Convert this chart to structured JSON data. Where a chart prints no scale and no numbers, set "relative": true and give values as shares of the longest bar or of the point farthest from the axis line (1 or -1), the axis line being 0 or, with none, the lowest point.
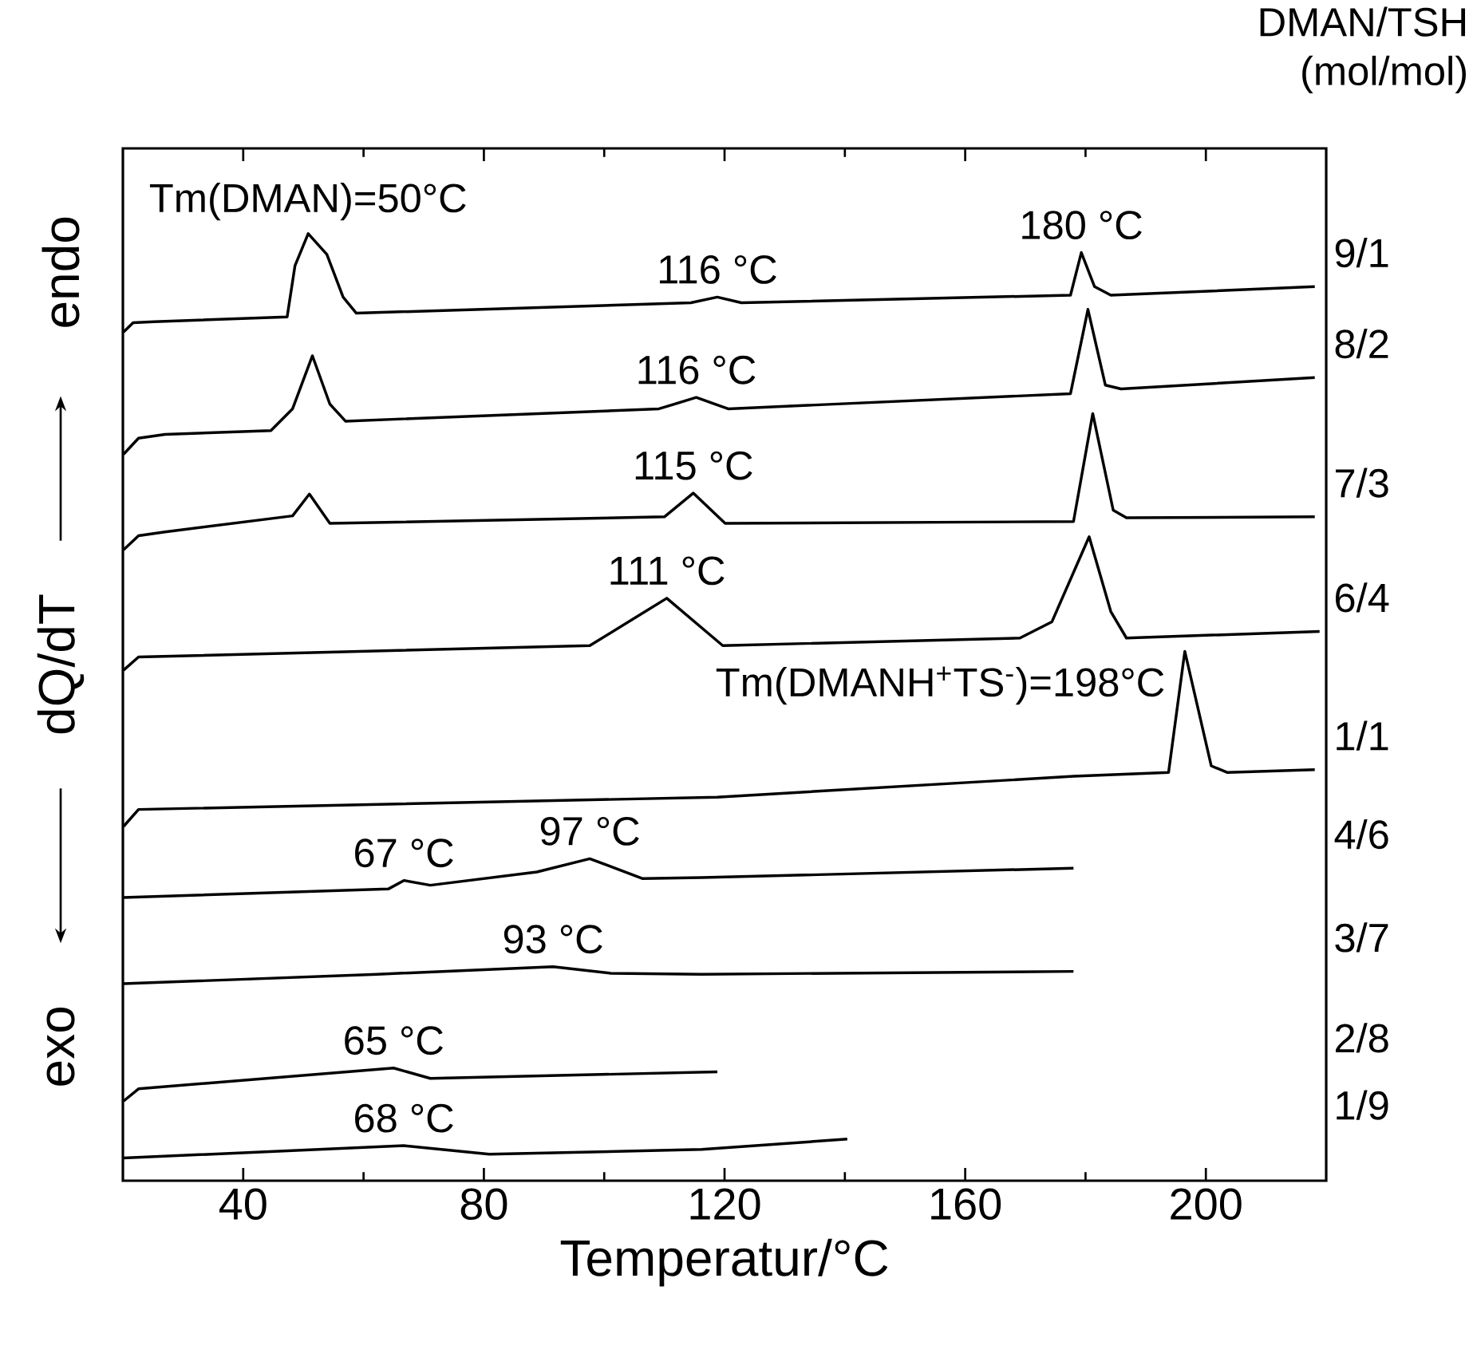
{
  "chart_data": {
    "type": "line",
    "relative": true,
    "xlabel": "Temperatur/°C",
    "ylabel": "dQ/dT",
    "legend_title": "DMAN/TSH (mol/mol)",
    "xlim": [
      20,
      220
    ],
    "xticks": [
      40,
      80,
      120,
      160,
      200
    ],
    "legend": false,
    "marker": "none",
    "line_style": "solid",
    "grid": false,
    "series": [
      {
        "name": "9/1",
        "color": "#000000",
        "x": [
          20.1,
          21.7,
          25.2,
          47.3,
          48.6,
          50.8,
          53.9,
          56.6,
          58.8,
          114.4,
          118.8,
          122.8,
          177.5,
          179.3,
          181.5,
          184.2,
          218.1
        ],
        "values": [
          0.896,
          0.906,
          0.907,
          0.912,
          0.966,
          1.0,
          0.978,
          0.933,
          0.916,
          0.927,
          0.933,
          0.927,
          0.935,
          0.98,
          0.944,
          0.935,
          0.944
        ]
      },
      {
        "name": "8/2",
        "color": "#000000",
        "x": [
          20.1,
          22.6,
          27.0,
          44.6,
          48.2,
          51.5,
          54.4,
          57.0,
          109.1,
          115.3,
          120.6,
          177.5,
          180.4,
          183.3,
          185.9,
          218.1
        ],
        "values": [
          0.767,
          0.784,
          0.788,
          0.792,
          0.815,
          0.871,
          0.82,
          0.802,
          0.815,
          0.827,
          0.815,
          0.831,
          0.92,
          0.84,
          0.836,
          0.848
        ]
      },
      {
        "name": "7/3",
        "color": "#000000",
        "x": [
          20.1,
          22.6,
          27.0,
          48.2,
          51.0,
          54.4,
          110.0,
          114.8,
          120.1,
          178.0,
          181.2,
          184.6,
          186.8,
          218.1
        ],
        "values": [
          0.666,
          0.681,
          0.685,
          0.702,
          0.725,
          0.694,
          0.701,
          0.726,
          0.694,
          0.696,
          0.81,
          0.708,
          0.7,
          0.701
        ]
      },
      {
        "name": "6/4",
        "color": "#000000",
        "x": [
          20.1,
          22.6,
          97.6,
          110.4,
          119.7,
          169.1,
          174.4,
          180.6,
          184.2,
          186.8,
          218.9
        ],
        "values": [
          0.539,
          0.553,
          0.565,
          0.615,
          0.565,
          0.573,
          0.59,
          0.68,
          0.601,
          0.573,
          0.58
        ]
      },
      {
        "name": "1/1",
        "color": "#000000",
        "x": [
          20.1,
          22.6,
          118.8,
          178.0,
          193.8,
          196.5,
          200.9,
          203.6,
          218.1
        ],
        "values": [
          0.374,
          0.392,
          0.405,
          0.427,
          0.431,
          0.559,
          0.438,
          0.431,
          0.434
        ]
      },
      {
        "name": "4/6",
        "color": "#000000",
        "x": [
          20.1,
          64.1,
          66.7,
          71.1,
          88.8,
          97.6,
          106.4,
          116.2,
          178.0
        ],
        "values": [
          0.299,
          0.308,
          0.317,
          0.312,
          0.326,
          0.34,
          0.319,
          0.32,
          0.33
        ]
      },
      {
        "name": "3/7",
        "color": "#000000",
        "x": [
          20.1,
          62.3,
          91.5,
          101.1,
          116.2,
          178.0
        ],
        "values": [
          0.208,
          0.218,
          0.226,
          0.219,
          0.218,
          0.221
        ]
      },
      {
        "name": "2/8",
        "color": "#000000",
        "x": [
          20.1,
          22.6,
          65.0,
          71.1,
          118.8
        ],
        "values": [
          0.084,
          0.097,
          0.119,
          0.108,
          0.115
        ]
      },
      {
        "name": "1/9",
        "color": "#000000",
        "x": [
          20.1,
          66.7,
          80.9,
          116.2,
          140.4
        ],
        "values": [
          0.024,
          0.037,
          0.028,
          0.033,
          0.044
        ]
      }
    ],
    "annotations": [
      "endo",
      "exo",
      {
        "text": "Tm(DMAN)=50°C",
        "x": 50.8,
        "y": 1.0
      },
      {
        "text": "116 °C",
        "x": 118.8,
        "y": 0.933
      },
      {
        "text": "180 °C",
        "x": 179.3,
        "y": 0.98
      },
      {
        "text": "116 °C",
        "x": 115.3,
        "y": 0.827
      },
      {
        "text": "115 °C",
        "x": 114.8,
        "y": 0.726
      },
      {
        "text": "111 °C",
        "x": 110.4,
        "y": 0.615
      },
      {
        "text": "Tm(DMANH$^{+}$TS$^{-}$)=198°C",
        "x": 196.5,
        "y": 0.559
      },
      {
        "text": "67 °C",
        "x": 66.7,
        "y": 0.317
      },
      {
        "text": "97 °C",
        "x": 97.6,
        "y": 0.34
      },
      {
        "text": "93 °C",
        "x": 91.5,
        "y": 0.226
      },
      {
        "text": "65 °C",
        "x": 65.0,
        "y": 0.119
      },
      {
        "text": "68 °C",
        "x": 66.7,
        "y": 0.037
      }
    ]
  }
}
